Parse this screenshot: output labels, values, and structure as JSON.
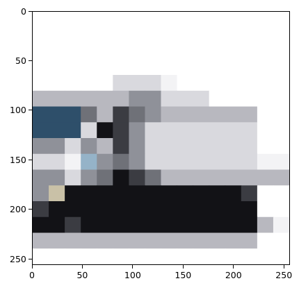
{
  "axes": {
    "x_ticks": [
      "0",
      "50",
      "100",
      "150",
      "200",
      "250"
    ],
    "y_ticks": [
      "0",
      "50",
      "100",
      "150",
      "200",
      "250"
    ],
    "x_range": [
      0,
      256
    ],
    "y_range": [
      0,
      256
    ],
    "y_inverted": true
  },
  "image": {
    "grid_size": 16,
    "palette": {
      "W": "#ffffff",
      "w": "#f3f3f5",
      "l": "#d9d9de",
      "m": "#b8b8bf",
      "s": "#8f9199",
      "g": "#6f7178",
      "d": "#3b3c42",
      "k": "#121216",
      "b": "#2e4f6a",
      "c": "#95b3c8",
      "t": "#c9c1a7"
    },
    "rows": [
      "WWWWWWWWWWWWWWWW",
      "WWWWWWWWWWWWWWWW",
      "WWWWWWWWWWWWWWWW",
      "WWWWWWWWWWWWWWWW",
      "WWWWWlllwWWWWWWW",
      "mmmmmmsslllWWWWW",
      "bbbgmdgsmmmmmmWW",
      "bbblkdslllllllWW",
      "sslsmdslllllllWW",
      "llwcsgslllllllww",
      "sslsgkdgmmmmmmmm",
      "stkkkkkkkkkkkdWW",
      "dkkkkkkkkkkkkkWW",
      "kkdkkkkkkkkkkkmw",
      "mmmmmmmmmmmmmmWW",
      "WWWWWWWWWWWWWWWW"
    ]
  }
}
